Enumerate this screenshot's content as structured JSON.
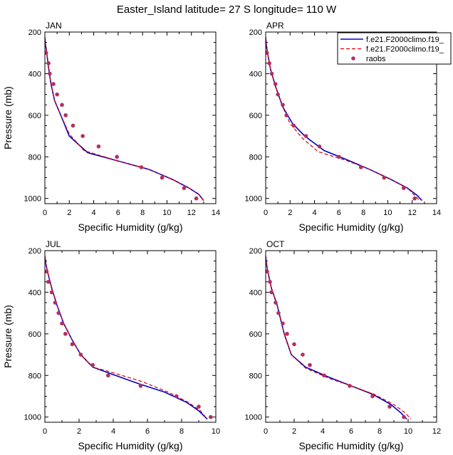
{
  "title": "Easter_Island  latitude= 27 S longitude= 110 W",
  "colors": {
    "model1": "#0000cc",
    "model2": "#dd0000",
    "raobs": "#b03060"
  },
  "legend": {
    "entries": [
      {
        "label": "f.e21.F2000climo.f19_",
        "style": "solid"
      },
      {
        "label": "f.e21.F2000climo.f19_",
        "style": "dashed"
      },
      {
        "label": "raobs",
        "style": "dots"
      }
    ]
  },
  "chart_data": [
    {
      "type": "line",
      "panel": "JAN",
      "title": "JAN",
      "xlabel": "Specific Humidity (g/kg)",
      "ylabel": "Pressure (mb)",
      "xlim": [
        0,
        14
      ],
      "xticks": [
        0,
        2,
        4,
        6,
        8,
        10,
        12,
        14
      ],
      "ylim": [
        200,
        1025
      ],
      "yticks": [
        200,
        400,
        600,
        800,
        1000
      ],
      "y_inverted": true,
      "series": [
        {
          "name": "f.e21.F2000climo.f19_ (solid)",
          "points": [
            [
              0.0,
              225
            ],
            [
              0.05,
              260
            ],
            [
              0.15,
              300
            ],
            [
              0.3,
              370
            ],
            [
              0.5,
              450
            ],
            [
              0.8,
              530
            ],
            [
              1.3,
              600
            ],
            [
              2.0,
              700
            ],
            [
              3.5,
              780
            ],
            [
              6.0,
              820
            ],
            [
              8.5,
              860
            ],
            [
              10.5,
              910
            ],
            [
              11.8,
              950
            ],
            [
              12.6,
              980
            ],
            [
              13.0,
              1010
            ]
          ]
        },
        {
          "name": "f.e21.F2000climo.f19_ (dashed)",
          "points": [
            [
              0.0,
              225
            ],
            [
              0.05,
              260
            ],
            [
              0.15,
              300
            ],
            [
              0.3,
              370
            ],
            [
              0.5,
              450
            ],
            [
              0.8,
              530
            ],
            [
              1.3,
              600
            ],
            [
              2.0,
              690
            ],
            [
              3.2,
              770
            ],
            [
              6.0,
              820
            ],
            [
              8.5,
              860
            ],
            [
              10.5,
              910
            ],
            [
              11.8,
              950
            ],
            [
              12.6,
              980
            ],
            [
              13.0,
              1010
            ]
          ]
        },
        {
          "name": "raobs",
          "points": [
            [
              0.1,
              300
            ],
            [
              0.3,
              350
            ],
            [
              0.4,
              400
            ],
            [
              0.7,
              450
            ],
            [
              1.0,
              500
            ],
            [
              1.4,
              550
            ],
            [
              1.7,
              600
            ],
            [
              2.3,
              650
            ],
            [
              3.1,
              700
            ],
            [
              4.4,
              750
            ],
            [
              5.9,
              800
            ],
            [
              7.9,
              850
            ],
            [
              9.6,
              900
            ],
            [
              11.4,
              950
            ],
            [
              12.4,
              1000
            ]
          ]
        }
      ]
    },
    {
      "type": "line",
      "panel": "APR",
      "title": "APR",
      "xlabel": "Specific Humidity (g/kg)",
      "ylabel": "",
      "xlim": [
        0,
        14
      ],
      "xticks": [
        0,
        2,
        4,
        6,
        8,
        10,
        12,
        14
      ],
      "ylim": [
        200,
        1025
      ],
      "yticks": [
        200,
        400,
        600,
        800,
        1000
      ],
      "y_inverted": true,
      "series": [
        {
          "name": "f.e21.F2000climo.f19_ (solid)",
          "points": [
            [
              0.0,
              225
            ],
            [
              0.05,
              260
            ],
            [
              0.15,
              300
            ],
            [
              0.4,
              380
            ],
            [
              0.8,
              460
            ],
            [
              1.4,
              560
            ],
            [
              2.2,
              640
            ],
            [
              3.2,
              700
            ],
            [
              4.8,
              770
            ],
            [
              6.5,
              810
            ],
            [
              8.5,
              860
            ],
            [
              10.3,
              910
            ],
            [
              11.6,
              950
            ],
            [
              12.4,
              985
            ],
            [
              12.8,
              1010
            ]
          ]
        },
        {
          "name": "f.e21.F2000climo.f19_ (dashed)",
          "points": [
            [
              0.0,
              225
            ],
            [
              0.05,
              260
            ],
            [
              0.15,
              300
            ],
            [
              0.4,
              380
            ],
            [
              0.8,
              460
            ],
            [
              1.4,
              560
            ],
            [
              2.0,
              640
            ],
            [
              3.0,
              710
            ],
            [
              4.3,
              775
            ],
            [
              6.5,
              815
            ],
            [
              8.5,
              860
            ],
            [
              10.3,
              910
            ],
            [
              11.6,
              950
            ],
            [
              12.2,
              985
            ],
            [
              12.6,
              1010
            ]
          ]
        },
        {
          "name": "raobs",
          "points": [
            [
              0.1,
              300
            ],
            [
              0.3,
              350
            ],
            [
              0.5,
              400
            ],
            [
              0.8,
              450
            ],
            [
              1.0,
              500
            ],
            [
              1.4,
              550
            ],
            [
              1.7,
              600
            ],
            [
              2.3,
              650
            ],
            [
              3.3,
              700
            ],
            [
              4.4,
              750
            ],
            [
              6.0,
              800
            ],
            [
              7.8,
              850
            ],
            [
              9.7,
              900
            ],
            [
              11.3,
              950
            ],
            [
              12.2,
              1000
            ]
          ]
        }
      ]
    },
    {
      "type": "line",
      "panel": "JUL",
      "title": "JUL",
      "xlabel": "Specific Humidity (g/kg)",
      "ylabel": "Pressure (mb)",
      "xlim": [
        0,
        10
      ],
      "xticks": [
        0,
        2,
        4,
        6,
        8,
        10
      ],
      "ylim": [
        200,
        1025
      ],
      "yticks": [
        200,
        400,
        600,
        800,
        1000
      ],
      "y_inverted": true,
      "series": [
        {
          "name": "f.e21.F2000climo.f19_ (solid)",
          "points": [
            [
              0.0,
              225
            ],
            [
              0.05,
              260
            ],
            [
              0.15,
              300
            ],
            [
              0.4,
              380
            ],
            [
              0.7,
              460
            ],
            [
              1.1,
              550
            ],
            [
              1.6,
              630
            ],
            [
              2.1,
              700
            ],
            [
              2.8,
              760
            ],
            [
              3.8,
              790
            ],
            [
              5.5,
              840
            ],
            [
              7.0,
              880
            ],
            [
              8.3,
              930
            ],
            [
              9.0,
              970
            ],
            [
              9.5,
              1010
            ]
          ]
        },
        {
          "name": "f.e21.F2000climo.f19_ (dashed)",
          "points": [
            [
              0.0,
              225
            ],
            [
              0.05,
              260
            ],
            [
              0.15,
              300
            ],
            [
              0.4,
              380
            ],
            [
              0.7,
              460
            ],
            [
              1.1,
              550
            ],
            [
              1.6,
              630
            ],
            [
              2.1,
              700
            ],
            [
              2.8,
              760
            ],
            [
              3.7,
              780
            ],
            [
              5.7,
              830
            ],
            [
              7.2,
              880
            ],
            [
              8.4,
              930
            ],
            [
              9.1,
              970
            ],
            [
              9.5,
              1010
            ]
          ]
        },
        {
          "name": "raobs",
          "points": [
            [
              0.1,
              300
            ],
            [
              0.2,
              350
            ],
            [
              0.4,
              400
            ],
            [
              0.6,
              450
            ],
            [
              0.8,
              500
            ],
            [
              1.0,
              550
            ],
            [
              1.2,
              600
            ],
            [
              1.6,
              650
            ],
            [
              2.1,
              700
            ],
            [
              2.8,
              750
            ],
            [
              3.7,
              800
            ],
            [
              5.6,
              850
            ],
            [
              7.7,
              900
            ],
            [
              9.0,
              950
            ],
            [
              9.7,
              1000
            ]
          ]
        }
      ]
    },
    {
      "type": "line",
      "panel": "OCT",
      "title": "OCT",
      "xlabel": "Specific Humidity (g/kg)",
      "ylabel": "",
      "xlim": [
        0,
        12
      ],
      "xticks": [
        0,
        2,
        4,
        6,
        8,
        10,
        12
      ],
      "ylim": [
        200,
        1025
      ],
      "yticks": [
        200,
        400,
        600,
        800,
        1000
      ],
      "y_inverted": true,
      "series": [
        {
          "name": "f.e21.F2000climo.f19_ (solid)",
          "points": [
            [
              0.0,
              225
            ],
            [
              0.05,
              260
            ],
            [
              0.15,
              300
            ],
            [
              0.4,
              380
            ],
            [
              0.8,
              460
            ],
            [
              1.3,
              600
            ],
            [
              1.8,
              700
            ],
            [
              2.8,
              760
            ],
            [
              4.5,
              810
            ],
            [
              6.0,
              850
            ],
            [
              7.5,
              890
            ],
            [
              8.8,
              940
            ],
            [
              9.5,
              980
            ],
            [
              9.9,
              1010
            ]
          ]
        },
        {
          "name": "f.e21.F2000climo.f19_ (dashed)",
          "points": [
            [
              0.0,
              225
            ],
            [
              0.05,
              260
            ],
            [
              0.15,
              300
            ],
            [
              0.4,
              380
            ],
            [
              0.8,
              460
            ],
            [
              1.3,
              600
            ],
            [
              1.8,
              700
            ],
            [
              2.8,
              765
            ],
            [
              4.5,
              815
            ],
            [
              6.0,
              850
            ],
            [
              7.6,
              890
            ],
            [
              9.0,
              940
            ],
            [
              9.8,
              980
            ],
            [
              10.2,
              1010
            ]
          ]
        },
        {
          "name": "raobs",
          "points": [
            [
              0.1,
              300
            ],
            [
              0.3,
              350
            ],
            [
              0.4,
              400
            ],
            [
              0.7,
              450
            ],
            [
              0.9,
              500
            ],
            [
              1.2,
              550
            ],
            [
              1.5,
              600
            ],
            [
              2.0,
              650
            ],
            [
              2.6,
              700
            ],
            [
              3.1,
              750
            ],
            [
              4.1,
              800
            ],
            [
              5.9,
              850
            ],
            [
              7.5,
              900
            ],
            [
              8.7,
              950
            ],
            [
              9.7,
              1000
            ]
          ]
        }
      ]
    }
  ]
}
